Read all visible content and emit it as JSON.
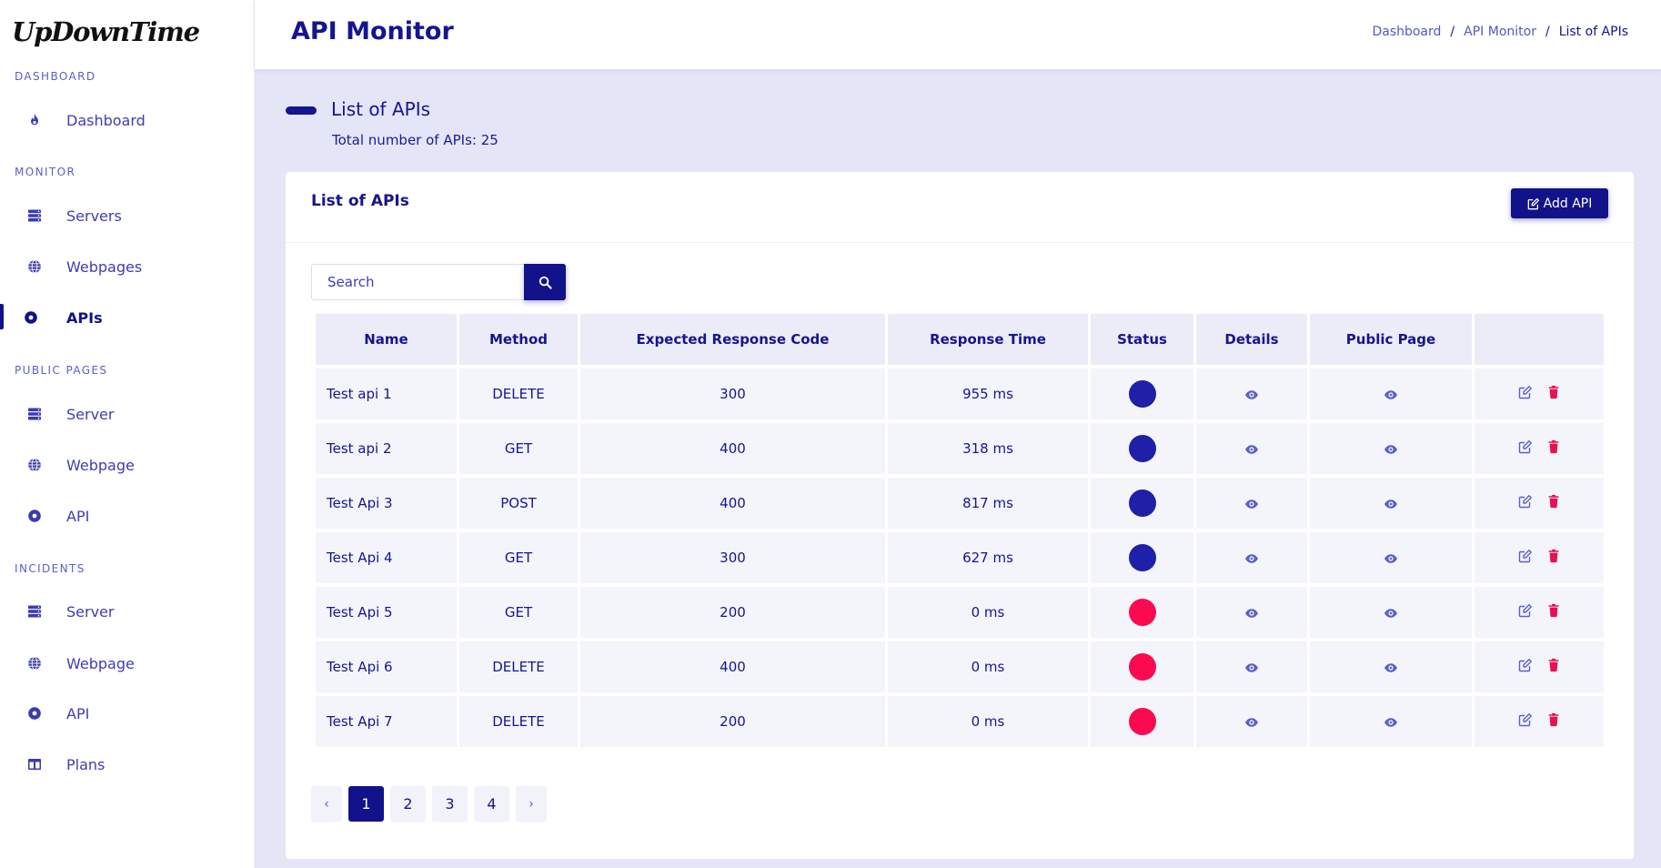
{
  "app": {
    "logo": "UpDownTime"
  },
  "sidebar": {
    "sections": [
      {
        "title": "DASHBOARD",
        "items": [
          {
            "label": "Dashboard",
            "icon": "fire-icon"
          }
        ]
      },
      {
        "title": "MONITOR",
        "items": [
          {
            "label": "Servers",
            "icon": "server-icon"
          },
          {
            "label": "Webpages",
            "icon": "globe-icon"
          },
          {
            "label": "APIs",
            "icon": "dot-circle-icon",
            "active": true
          }
        ]
      },
      {
        "title": "PUBLIC PAGES",
        "items": [
          {
            "label": "Server",
            "icon": "server-icon"
          },
          {
            "label": "Webpage",
            "icon": "globe-icon"
          },
          {
            "label": "API",
            "icon": "dot-circle-icon"
          }
        ]
      },
      {
        "title": "INCIDENTS",
        "items": [
          {
            "label": "Server",
            "icon": "server-icon"
          },
          {
            "label": "Webpage",
            "icon": "globe-icon"
          },
          {
            "label": "API",
            "icon": "dot-circle-icon"
          },
          {
            "label": "Plans",
            "icon": "table-icon"
          }
        ]
      }
    ]
  },
  "header": {
    "title": "API Monitor",
    "breadcrumb": [
      "Dashboard",
      "API Monitor",
      "List of APIs"
    ]
  },
  "section": {
    "title": "List of APIs",
    "subtitle": "Total number of APIs: 25"
  },
  "card": {
    "title": "List of APIs",
    "add_button": "Add API",
    "search": {
      "placeholder": "Search",
      "value": ""
    }
  },
  "table": {
    "columns": [
      "Name",
      "Method",
      "Expected Response Code",
      "Response Time",
      "Status",
      "Details",
      "Public Page",
      ""
    ],
    "rows": [
      {
        "name": "Test api 1",
        "method": "DELETE",
        "code": "300",
        "time": "955 ms",
        "status": "up"
      },
      {
        "name": "Test api 2",
        "method": "GET",
        "code": "400",
        "time": "318 ms",
        "status": "up"
      },
      {
        "name": "Test Api 3",
        "method": "POST",
        "code": "400",
        "time": "817 ms",
        "status": "up"
      },
      {
        "name": "Test Api 4",
        "method": "GET",
        "code": "300",
        "time": "627 ms",
        "status": "up"
      },
      {
        "name": "Test Api 5",
        "method": "GET",
        "code": "200",
        "time": "0 ms",
        "status": "down"
      },
      {
        "name": "Test Api 6",
        "method": "DELETE",
        "code": "400",
        "time": "0 ms",
        "status": "down"
      },
      {
        "name": "Test Api 7",
        "method": "DELETE",
        "code": "200",
        "time": "0 ms",
        "status": "down"
      }
    ]
  },
  "pagination": {
    "prev": "‹",
    "next": "›",
    "pages": [
      "1",
      "2",
      "3",
      "4"
    ],
    "current": "1"
  },
  "colors": {
    "primary": "#12128a",
    "status_up": "#1f1fa8",
    "status_down": "#fb0a4f",
    "action_icon": "#5b5fc7",
    "delete_icon": "#e8104e"
  }
}
